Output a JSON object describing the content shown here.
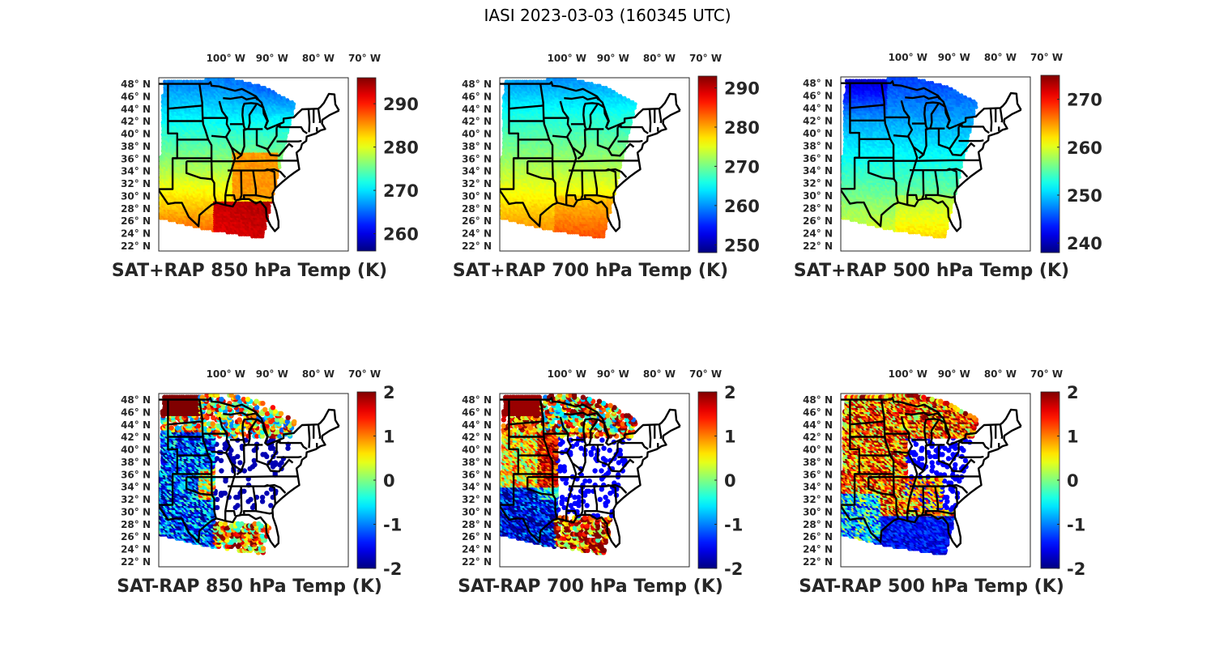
{
  "figure": {
    "title": "IASI 2023-03-03 (160345 UTC)"
  },
  "chart_data": [
    {
      "type": "heatmap",
      "panel": "top-left",
      "title": "SAT+RAP 850 hPa Temp (K)",
      "x_ticks": [
        "100° W",
        "90° W",
        "80° W",
        "70° W"
      ],
      "x_tick_values": [
        -100,
        -90,
        -80,
        -70
      ],
      "y_ticks": [
        "48° N",
        "46° N",
        "44° N",
        "42° N",
        "40° N",
        "38° N",
        "36° N",
        "34° N",
        "32° N",
        "30° N",
        "28° N",
        "26° N",
        "24° N",
        "22° N"
      ],
      "y_tick_values": [
        48,
        46,
        44,
        42,
        40,
        38,
        36,
        34,
        32,
        30,
        28,
        26,
        24,
        22
      ],
      "colorbar": {
        "colormap": "jet",
        "range": [
          256,
          296
        ],
        "ticks": [
          290,
          280,
          270,
          260
        ]
      },
      "field": {
        "north": 266,
        "south": 290,
        "southeast_max": 294,
        "northeast_min": 262,
        "tennessee_valley": 285
      }
    },
    {
      "type": "heatmap",
      "panel": "top-middle",
      "title": "SAT+RAP 700 hPa Temp (K)",
      "x_ticks": [
        "100° W",
        "90° W",
        "80° W",
        "70° W"
      ],
      "x_tick_values": [
        -100,
        -90,
        -80,
        -70
      ],
      "y_ticks": [
        "48° N",
        "46° N",
        "44° N",
        "42° N",
        "40° N",
        "38° N",
        "36° N",
        "34° N",
        "32° N",
        "30° N",
        "28° N",
        "26° N",
        "24° N",
        "22° N"
      ],
      "y_tick_values": [
        48,
        46,
        44,
        42,
        40,
        38,
        36,
        34,
        32,
        30,
        28,
        26,
        24,
        22
      ],
      "colorbar": {
        "colormap": "jet",
        "range": [
          248,
          293
        ],
        "ticks": [
          290,
          280,
          270,
          260,
          250
        ]
      },
      "field": {
        "north": 262,
        "south": 284,
        "southeast_max": 287,
        "northeast_min": 258
      }
    },
    {
      "type": "heatmap",
      "panel": "top-right",
      "title": "SAT+RAP 500 hPa Temp (K)",
      "x_ticks": [
        "100° W",
        "90° W",
        "80° W",
        "70° W"
      ],
      "x_tick_values": [
        -100,
        -90,
        -80,
        -70
      ],
      "y_ticks": [
        "48° N",
        "46° N",
        "44° N",
        "42° N",
        "40° N",
        "38° N",
        "36° N",
        "34° N",
        "32° N",
        "30° N",
        "28° N",
        "26° N",
        "24° N",
        "22° N"
      ],
      "y_tick_values": [
        48,
        46,
        44,
        42,
        40,
        38,
        36,
        34,
        32,
        30,
        28,
        26,
        24,
        22
      ],
      "colorbar": {
        "colormap": "jet",
        "range": [
          238,
          275
        ],
        "ticks": [
          270,
          260,
          250,
          240
        ]
      },
      "field": {
        "north": 245,
        "south": 262,
        "southeast_max": 266,
        "northwest_min": 241
      }
    },
    {
      "type": "heatmap",
      "panel": "bottom-left",
      "title": "SAT-RAP 850 hPa Temp (K)",
      "x_ticks": [
        "100° W",
        "90° W",
        "80° W",
        "70° W"
      ],
      "x_tick_values": [
        -100,
        -90,
        -80,
        -70
      ],
      "y_ticks": [
        "48° N",
        "46° N",
        "44° N",
        "42° N",
        "40° N",
        "38° N",
        "36° N",
        "34° N",
        "32° N",
        "30° N",
        "28° N",
        "26° N",
        "24° N",
        "22° N"
      ],
      "y_tick_values": [
        48,
        46,
        44,
        42,
        40,
        38,
        36,
        34,
        32,
        30,
        28,
        26,
        24,
        22
      ],
      "colorbar": {
        "colormap": "jet",
        "range": [
          -2,
          2
        ],
        "ticks": [
          2,
          1,
          0,
          -1,
          -2
        ]
      },
      "field": {
        "north_dakota": 2,
        "southern_plains": -1.2,
        "gulf_coast": -1.8,
        "gulf_offshore": 1.5,
        "mixed_scattered": 0
      }
    },
    {
      "type": "heatmap",
      "panel": "bottom-middle",
      "title": "SAT-RAP 700 hPa Temp (K)",
      "x_ticks": [
        "100° W",
        "90° W",
        "80° W",
        "70° W"
      ],
      "x_tick_values": [
        -100,
        -90,
        -80,
        -70
      ],
      "y_ticks": [
        "48° N",
        "46° N",
        "44° N",
        "42° N",
        "40° N",
        "38° N",
        "36° N",
        "34° N",
        "32° N",
        "30° N",
        "28° N",
        "26° N",
        "24° N",
        "22° N"
      ],
      "y_tick_values": [
        48,
        46,
        44,
        42,
        40,
        38,
        36,
        34,
        32,
        30,
        28,
        26,
        24,
        22
      ],
      "colorbar": {
        "colormap": "jet",
        "range": [
          -2,
          2
        ],
        "ticks": [
          2,
          1,
          0,
          -1,
          -2
        ]
      },
      "field": {
        "north_dakota": 2,
        "central_plains": 0.8,
        "southern_plains": -1.6,
        "gulf_offshore": 1.2
      }
    },
    {
      "type": "heatmap",
      "panel": "bottom-right",
      "title": "SAT-RAP 500 hPa Temp (K)",
      "x_ticks": [
        "100° W",
        "90° W",
        "80° W",
        "70° W"
      ],
      "x_tick_values": [
        -100,
        -90,
        -80,
        -70
      ],
      "y_ticks": [
        "48° N",
        "46° N",
        "44° N",
        "42° N",
        "40° N",
        "38° N",
        "36° N",
        "34° N",
        "32° N",
        "30° N",
        "28° N",
        "26° N",
        "24° N",
        "22° N"
      ],
      "y_tick_values": [
        48,
        46,
        44,
        42,
        40,
        38,
        36,
        34,
        32,
        30,
        28,
        26,
        24,
        22
      ],
      "colorbar": {
        "colormap": "jet",
        "range": [
          -2,
          2
        ],
        "ticks": [
          2,
          1,
          0,
          -1,
          -2
        ]
      },
      "field": {
        "central_plains": 1.5,
        "texas": -0.5,
        "gulf_coast": -2,
        "northern_tier": 1.0
      }
    }
  ]
}
